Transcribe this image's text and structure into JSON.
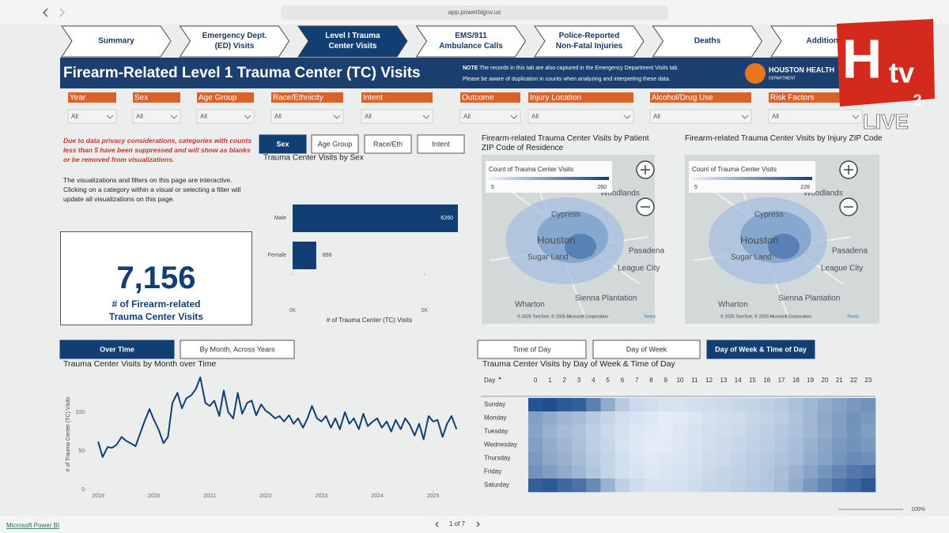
{
  "browser": {
    "url": "app.powerbigov.us"
  },
  "tabs": [
    [
      "Summary"
    ],
    [
      "Emergency Dept.",
      "(ED) Visits"
    ],
    [
      "Level I Trauma",
      "Center Visits"
    ],
    [
      "EMS/911",
      "Ambulance Calls"
    ],
    [
      "Police-Reported",
      "Non-Fatal Injuries"
    ],
    [
      "Deaths"
    ],
    [
      "Additional"
    ]
  ],
  "active_tab": 2,
  "header": {
    "title": "Firearm-Related Level 1 Trauma Center (TC) Visits",
    "note_label": "NOTE",
    "note": "The records in this tab are also captured in the Emergency Department Visits tab.",
    "note2": "Please be aware of duplication in counts when analyzing and interpreting these data.",
    "logo": "HOUSTON HEALTH",
    "logo_sub": "DEPARTMENT"
  },
  "filters": [
    {
      "label": "Year",
      "value": "All"
    },
    {
      "label": "Sex",
      "value": "All"
    },
    {
      "label": "Age Group",
      "value": "All"
    },
    {
      "label": "Race/Ethnicity",
      "value": "All"
    },
    {
      "label": "Intent",
      "value": "All"
    },
    {
      "label": "Outcome",
      "value": "All"
    },
    {
      "label": "Injury Location",
      "value": "All"
    },
    {
      "label": "Alcohol/Drug Use",
      "value": "All"
    },
    {
      "label": "Risk Factors",
      "value": "All"
    }
  ],
  "notes": {
    "privacy": "Due to data privacy considerations, categories with counts less than 5 have been suppressed and will show as blanks or be removed from visualizations.",
    "interactive": "The visualizations and filters on this page are interactive. Clicking on a category within a visual or selecting a filter will update all visualizations on this page."
  },
  "kpi": {
    "value": "7,156",
    "label": "# of Firearm-related Trauma Center Visits"
  },
  "buttons": {
    "demographics": [
      "Sex",
      "Age Group",
      "Race/Eth",
      "Intent"
    ],
    "demographics_active": 0,
    "time": [
      "Over Time",
      "By Month, Across Years"
    ],
    "time_active": 0,
    "heatmap": [
      "Time of Day",
      "Day of Week",
      "Day of Week & Time of Day"
    ],
    "heatmap_active": 2
  },
  "maps": [
    {
      "title": "Firearm-related Trauma Center Visits by Patient ZIP Code of Residence",
      "legend_title": "Count of Trauma Center Visits",
      "legend_min": "5",
      "legend_max": "260",
      "attribution": "© 2025 TomTom, © 2025 Microsoft Corporation",
      "terms": "Terms"
    },
    {
      "title": "Firearm-related Trauma Center Visits by Injury ZIP Code",
      "legend_title": "Count of Trauma Center Visits",
      "legend_min": "5",
      "legend_max": "226",
      "attribution": "© 2025 TomTom, © 2025 Microsoft Corporation",
      "terms": "Terms"
    }
  ],
  "places": [
    "Cypress",
    "Woodlands",
    "Houston",
    "Sugar Land",
    "Pasadena",
    "League City",
    "Sienna Plantation",
    "Wharton"
  ],
  "chart_data": [
    {
      "type": "bar",
      "orientation": "horizontal",
      "title": "Trauma Center Visits by Sex",
      "categories": [
        "Male",
        "Female"
      ],
      "values": [
        6260,
        896
      ],
      "color": "#123f73",
      "x_label": "# of Trauma Center (TC) Visits",
      "xlim": [
        0,
        6260
      ],
      "xticks": [
        {
          "value": 0,
          "label": "0K"
        },
        {
          "value": 5000,
          "label": "5K"
        }
      ]
    },
    {
      "type": "line",
      "title": "Trauma Center Visits by Month over Time",
      "y_label": "# of Trauma Center (TC) Visits",
      "color": "#123f73",
      "x": [
        2019,
        2019.08,
        2019.17,
        2019.25,
        2019.33,
        2019.42,
        2019.5,
        2019.58,
        2019.67,
        2019.75,
        2019.83,
        2019.92,
        2020,
        2020.08,
        2020.17,
        2020.25,
        2020.33,
        2020.42,
        2020.5,
        2020.58,
        2020.67,
        2020.75,
        2020.83,
        2020.92,
        2021,
        2021.08,
        2021.17,
        2021.25,
        2021.33,
        2021.42,
        2021.5,
        2021.58,
        2021.67,
        2021.75,
        2021.83,
        2021.92,
        2022,
        2022.08,
        2022.17,
        2022.25,
        2022.33,
        2022.42,
        2022.5,
        2022.58,
        2022.67,
        2022.75,
        2022.83,
        2022.92,
        2023,
        2023.08,
        2023.17,
        2023.25,
        2023.33,
        2023.42,
        2023.5,
        2023.58,
        2023.67,
        2023.75,
        2023.83,
        2023.92,
        2024,
        2024.08,
        2024.17,
        2024.25,
        2024.33,
        2024.42,
        2024.5,
        2024.58,
        2024.67,
        2024.75,
        2024.83,
        2024.92,
        2025,
        2025.08,
        2025.17,
        2025.25,
        2025.33,
        2025.42
      ],
      "values": [
        62,
        42,
        55,
        54,
        58,
        68,
        63,
        60,
        56,
        72,
        88,
        104,
        90,
        78,
        60,
        68,
        112,
        125,
        105,
        118,
        122,
        130,
        145,
        112,
        108,
        115,
        95,
        128,
        100,
        92,
        125,
        98,
        112,
        115,
        96,
        110,
        102,
        98,
        92,
        95,
        88,
        96,
        85,
        92,
        80,
        92,
        108,
        92,
        88,
        95,
        80,
        92,
        78,
        100,
        85,
        92,
        78,
        98,
        82,
        88,
        92,
        80,
        88,
        75,
        90,
        78,
        92,
        84,
        70,
        85,
        65,
        95,
        88,
        90,
        68,
        85,
        95,
        78
      ],
      "xlim": [
        2018.8,
        2025.6
      ],
      "xticks": [
        2019,
        2020,
        2021,
        2022,
        2023,
        2024,
        2025
      ],
      "ylim": [
        0,
        150
      ],
      "yticks": [
        0,
        50,
        100
      ]
    },
    {
      "type": "heatmap",
      "title": "Trauma Center Visits by Day of Week & Time of Day",
      "row_header": "Day",
      "rows": [
        "Sunday",
        "Monday",
        "Tuesday",
        "Wednesday",
        "Thursday",
        "Friday",
        "Saturday"
      ],
      "columns": [
        0,
        1,
        2,
        3,
        4,
        5,
        6,
        7,
        8,
        9,
        10,
        11,
        12,
        13,
        14,
        15,
        16,
        17,
        18,
        19,
        20,
        21,
        22,
        23
      ],
      "color_min": "#e3edf7",
      "color_max": "#1f4f8f",
      "values": [
        [
          80,
          82,
          78,
          75,
          62,
          45,
          32,
          26,
          24,
          22,
          22,
          24,
          25,
          26,
          27,
          28,
          30,
          32,
          36,
          40,
          44,
          48,
          52,
          55
        ],
        [
          50,
          45,
          40,
          38,
          32,
          28,
          24,
          22,
          20,
          18,
          19,
          21,
          23,
          24,
          25,
          27,
          29,
          31,
          35,
          40,
          46,
          50,
          55,
          52
        ],
        [
          48,
          42,
          38,
          35,
          30,
          26,
          23,
          20,
          19,
          18,
          20,
          22,
          24,
          25,
          26,
          28,
          30,
          33,
          36,
          40,
          45,
          50,
          54,
          50
        ],
        [
          50,
          44,
          40,
          36,
          30,
          27,
          22,
          20,
          18,
          19,
          20,
          22,
          24,
          26,
          27,
          29,
          31,
          34,
          37,
          42,
          47,
          52,
          55,
          52
        ],
        [
          52,
          46,
          42,
          38,
          32,
          28,
          24,
          21,
          19,
          20,
          21,
          23,
          25,
          26,
          28,
          30,
          32,
          35,
          38,
          44,
          48,
          54,
          58,
          56
        ],
        [
          55,
          50,
          45,
          40,
          34,
          28,
          24,
          22,
          20,
          21,
          22,
          24,
          26,
          28,
          29,
          31,
          34,
          37,
          42,
          48,
          54,
          60,
          65,
          68
        ],
        [
          75,
          78,
          72,
          68,
          58,
          42,
          30,
          25,
          22,
          22,
          23,
          25,
          27,
          28,
          30,
          32,
          34,
          38,
          44,
          52,
          60,
          68,
          72,
          78
        ]
      ]
    }
  ],
  "footer": {
    "brand": "Microsoft Power BI",
    "page": "1 of 7",
    "zoom": "100%"
  },
  "overlay": {
    "mark": "H",
    "sub": "tv",
    "channel": "2",
    "live": "LIVE"
  }
}
